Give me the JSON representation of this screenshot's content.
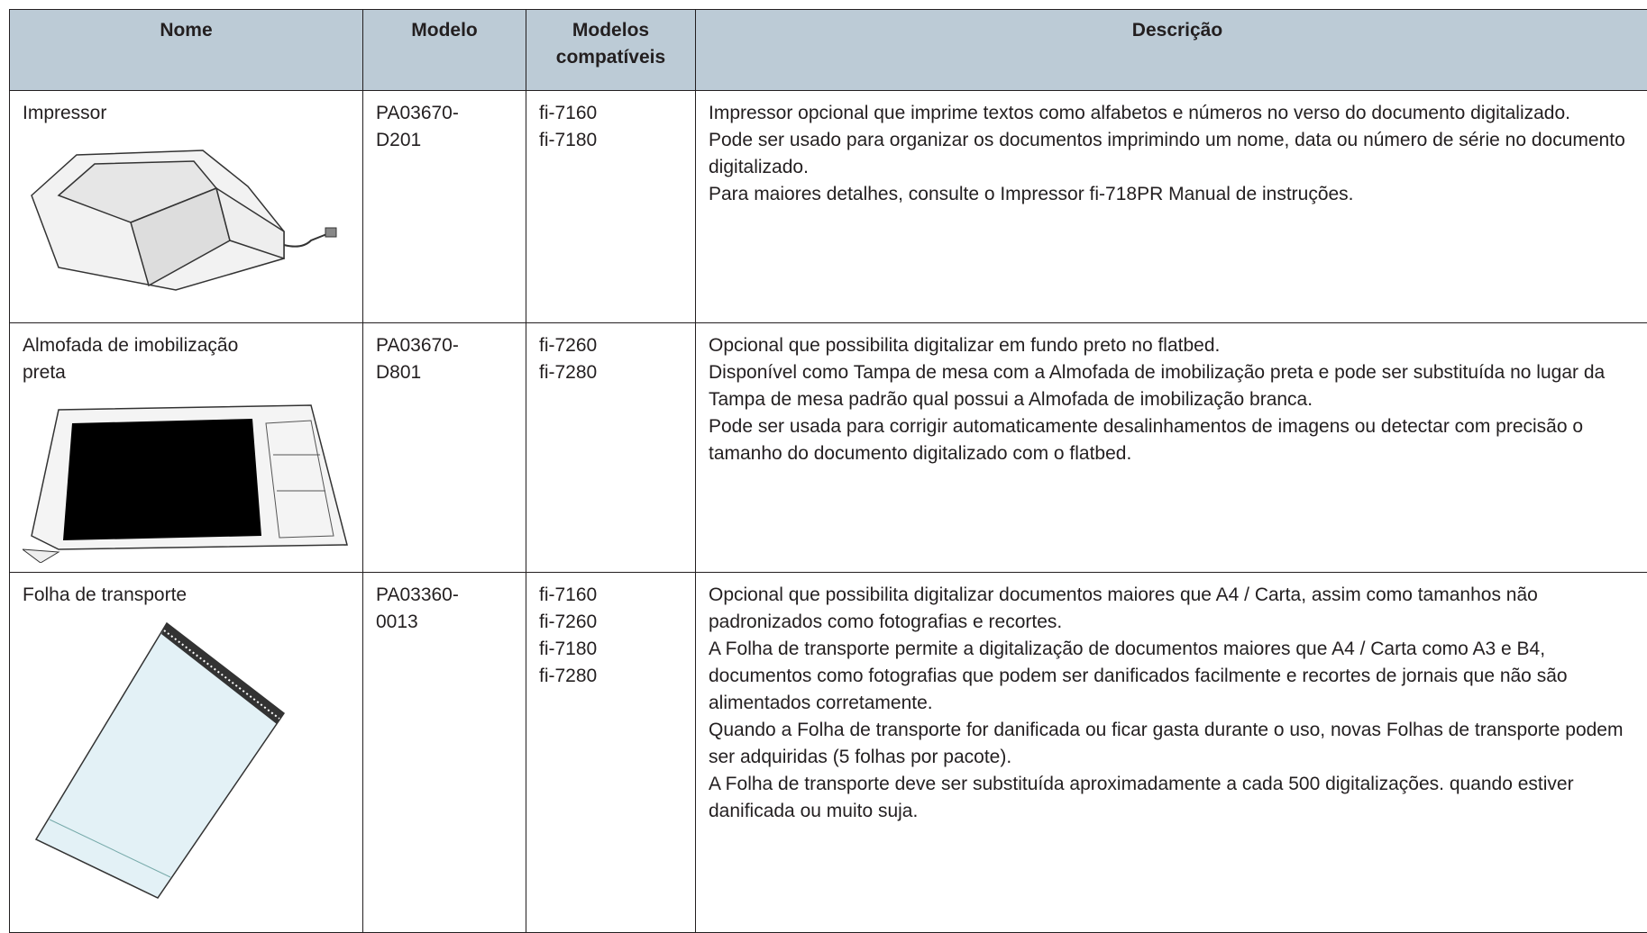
{
  "table": {
    "headers": [
      "Nome",
      "Modelo",
      "Modelos compatíveis",
      "Descrição"
    ],
    "rows": [
      {
        "name": [
          "Impressor"
        ],
        "model": [
          "PA03670-",
          "D201"
        ],
        "compatible": [
          "fi-7160",
          "fi-7180"
        ],
        "description": [
          "Impressor opcional que imprime textos como alfabetos e números no verso do documento digitalizado.",
          "Pode ser usado para organizar os documentos imprimindo um nome, data ou número de série no documento digitalizado.",
          "Para maiores detalhes, consulte o Impressor fi-718PR Manual de instruções."
        ]
      },
      {
        "name": [
          "Almofada de imobilização",
          "preta"
        ],
        "model": [
          "PA03670-",
          "D801"
        ],
        "compatible": [
          "fi-7260",
          "fi-7280"
        ],
        "description": [
          "Opcional que possibilita digitalizar em fundo preto no flatbed.",
          "Disponível como Tampa de mesa com a Almofada de imobilização preta e pode ser substituída no lugar da Tampa de mesa padrão qual possui a Almofada de imobilização branca.",
          "Pode ser usada para corrigir automaticamente desalinhamentos de imagens ou detectar com precisão o tamanho do documento digitalizado com o flatbed."
        ]
      },
      {
        "name": [
          "Folha de transporte"
        ],
        "model": [
          "PA03360-",
          "0013"
        ],
        "compatible": [
          "fi-7160",
          "fi-7260",
          "fi-7180",
          "fi-7280"
        ],
        "description": [
          "Opcional que possibilita digitalizar documentos maiores que A4 / Carta, assim como tamanhos não padronizados como fotografias e recortes.",
          "A Folha de transporte permite a digitalização de documentos maiores que A4 / Carta como A3 e B4, documentos como fotografias que podem ser danificados facilmente e recortes de jornais que não são alimentados corretamente.",
          "Quando a Folha de transporte for danificada ou ficar gasta durante o uso, novas Folhas de transporte podem ser adquiridas (5 folhas por pacote).",
          "A Folha de transporte deve ser substituída aproximadamente a cada 500 digitalizações. quando estiver danificada ou muito suja."
        ]
      }
    ]
  }
}
